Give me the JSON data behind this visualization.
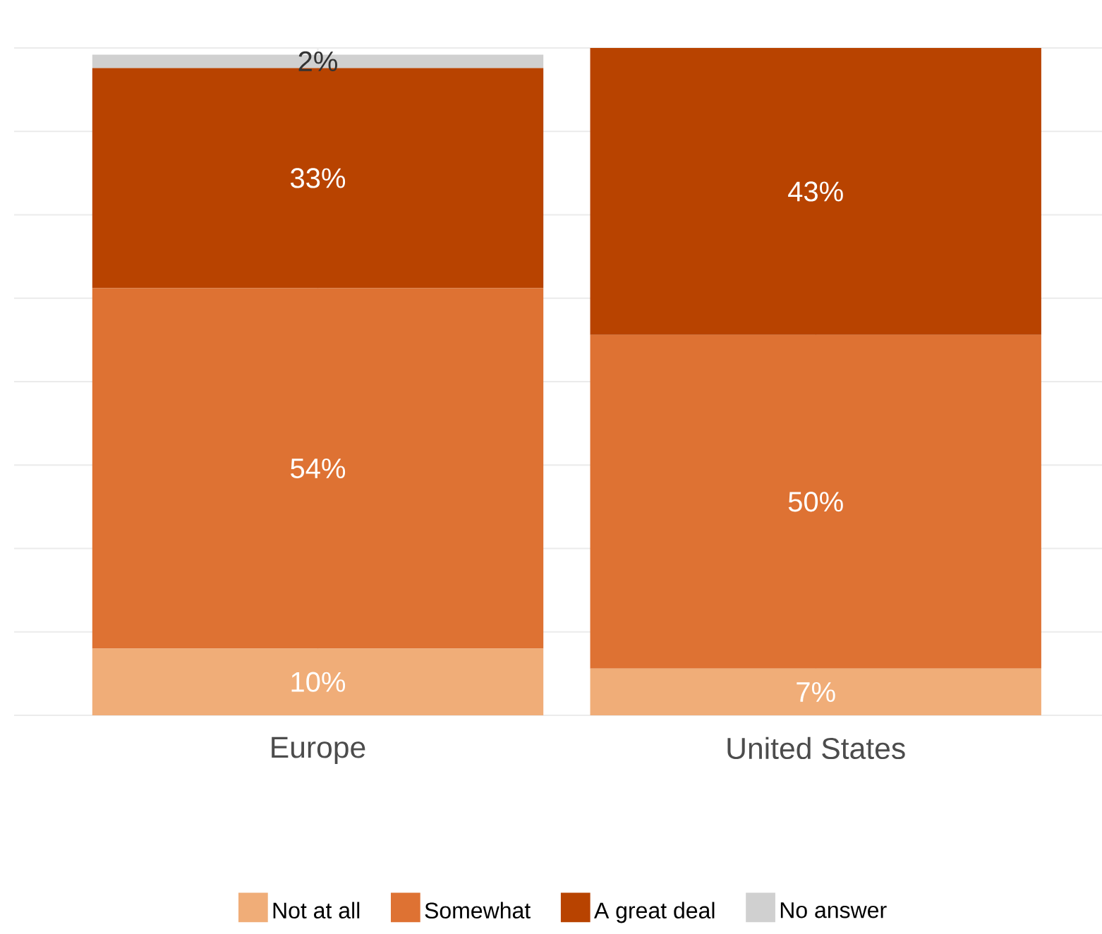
{
  "chart_data": {
    "type": "bar",
    "stacked": true,
    "categories": [
      "Europe",
      "United States"
    ],
    "series": [
      {
        "name": "Not at all",
        "color": "#f0ad78",
        "values": [
          10,
          7
        ],
        "value_labels": [
          "10%",
          "7%"
        ]
      },
      {
        "name": "Somewhat",
        "color": "#de7233",
        "values": [
          54,
          50
        ],
        "value_labels": [
          "54%",
          "50%"
        ]
      },
      {
        "name": "A great deal",
        "color": "#b84300",
        "values": [
          33,
          43
        ],
        "value_labels": [
          "33%",
          "43%"
        ]
      },
      {
        "name": "No answer",
        "color": "#d0d0d0",
        "values": [
          2,
          null
        ],
        "value_labels": [
          "2%",
          null
        ]
      }
    ],
    "ylim": [
      0,
      100
    ],
    "yticks": [
      {
        "value": 0,
        "label": null
      },
      {
        "value": 12.5,
        "label": null
      },
      {
        "value": 25,
        "label": null
      },
      {
        "value": 37.5,
        "label": null
      },
      {
        "value": 50,
        "label": null
      },
      {
        "value": 62.5,
        "label": null
      },
      {
        "value": 75,
        "label": null
      },
      {
        "value": 87.5,
        "label": null
      },
      {
        "value": 100,
        "label": null
      }
    ],
    "tick_labels": "x",
    "grid": true,
    "legend": "bottom"
  }
}
